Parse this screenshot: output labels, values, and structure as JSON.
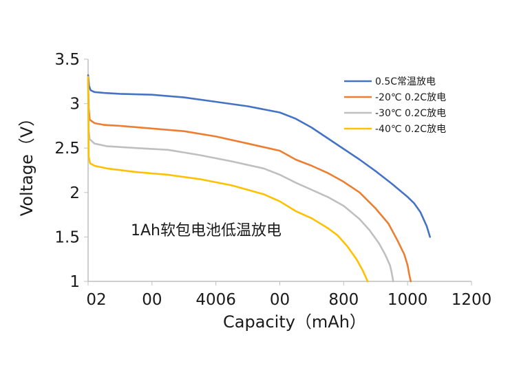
{
  "chart_data": {
    "type": "line",
    "xlabel": "Capacity（mAh）",
    "ylabel": "Voltage（V）",
    "annotation": "1Ah软包电池低温放电",
    "xlim": [
      0,
      1200
    ],
    "ylim": [
      1,
      3.5
    ],
    "x_tick_labels": [
      "02",
      "00",
      "4006",
      "00",
      "800",
      "1000",
      "1200"
    ],
    "y_tick_labels": [
      "3.5",
      "3",
      "2.5",
      "2",
      "1.5",
      "1"
    ],
    "y_tick_values": [
      3.5,
      3,
      2.5,
      2,
      1.5,
      1
    ],
    "legend_position": "top-right",
    "grid": false,
    "series": [
      {
        "name": "0.5C常温放电",
        "color": "#4472C4",
        "points": [
          [
            0,
            3.32
          ],
          [
            3,
            3.2
          ],
          [
            8,
            3.15
          ],
          [
            20,
            3.13
          ],
          [
            50,
            3.12
          ],
          [
            100,
            3.11
          ],
          [
            200,
            3.1
          ],
          [
            300,
            3.07
          ],
          [
            400,
            3.02
          ],
          [
            500,
            2.97
          ],
          [
            600,
            2.9
          ],
          [
            650,
            2.83
          ],
          [
            700,
            2.73
          ],
          [
            750,
            2.61
          ],
          [
            800,
            2.49
          ],
          [
            850,
            2.37
          ],
          [
            900,
            2.24
          ],
          [
            950,
            2.1
          ],
          [
            1000,
            1.95
          ],
          [
            1020,
            1.88
          ],
          [
            1040,
            1.78
          ],
          [
            1060,
            1.62
          ],
          [
            1070,
            1.5
          ]
        ]
      },
      {
        "name": "-20℃ 0.2C放电",
        "color": "#ED7D31",
        "points": [
          [
            0,
            3.28
          ],
          [
            2,
            2.95
          ],
          [
            5,
            2.82
          ],
          [
            20,
            2.78
          ],
          [
            50,
            2.76
          ],
          [
            100,
            2.75
          ],
          [
            200,
            2.72
          ],
          [
            300,
            2.69
          ],
          [
            400,
            2.63
          ],
          [
            500,
            2.55
          ],
          [
            600,
            2.47
          ],
          [
            650,
            2.37
          ],
          [
            700,
            2.3
          ],
          [
            750,
            2.22
          ],
          [
            800,
            2.12
          ],
          [
            850,
            2.0
          ],
          [
            900,
            1.82
          ],
          [
            940,
            1.65
          ],
          [
            970,
            1.45
          ],
          [
            990,
            1.3
          ],
          [
            1000,
            1.18
          ],
          [
            1005,
            1.08
          ],
          [
            1010,
            1.0
          ]
        ]
      },
      {
        "name": "-30℃ 0.2C放电",
        "color": "#BFBFBF",
        "points": [
          [
            0,
            3.24
          ],
          [
            2,
            2.7
          ],
          [
            5,
            2.6
          ],
          [
            20,
            2.55
          ],
          [
            60,
            2.52
          ],
          [
            150,
            2.5
          ],
          [
            250,
            2.48
          ],
          [
            350,
            2.42
          ],
          [
            450,
            2.35
          ],
          [
            550,
            2.27
          ],
          [
            600,
            2.2
          ],
          [
            650,
            2.11
          ],
          [
            700,
            2.03
          ],
          [
            750,
            1.95
          ],
          [
            800,
            1.85
          ],
          [
            850,
            1.7
          ],
          [
            880,
            1.58
          ],
          [
            910,
            1.43
          ],
          [
            930,
            1.3
          ],
          [
            945,
            1.18
          ],
          [
            950,
            1.1
          ],
          [
            955,
            1.0
          ]
        ]
      },
      {
        "name": "-40℃ 0.2C放电",
        "color": "#FFC000",
        "points": [
          [
            0,
            3.3
          ],
          [
            2,
            2.4
          ],
          [
            6,
            2.33
          ],
          [
            20,
            2.3
          ],
          [
            60,
            2.27
          ],
          [
            150,
            2.23
          ],
          [
            250,
            2.2
          ],
          [
            350,
            2.15
          ],
          [
            450,
            2.08
          ],
          [
            550,
            1.98
          ],
          [
            600,
            1.9
          ],
          [
            650,
            1.79
          ],
          [
            700,
            1.71
          ],
          [
            750,
            1.6
          ],
          [
            780,
            1.52
          ],
          [
            810,
            1.4
          ],
          [
            840,
            1.25
          ],
          [
            860,
            1.12
          ],
          [
            870,
            1.04
          ],
          [
            875,
            1.0
          ]
        ]
      }
    ]
  }
}
